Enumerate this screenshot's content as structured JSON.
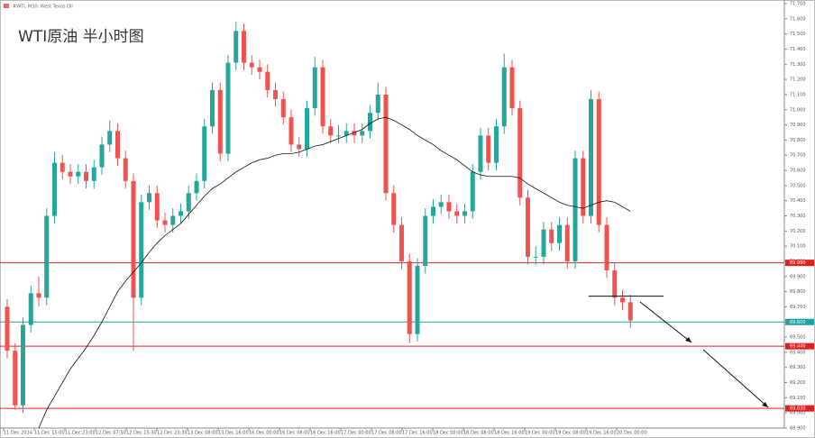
{
  "header": "#WTI, M30: West Texas Oil",
  "chart_data": {
    "type": "candlestick",
    "title": "WTI原油 半小时图",
    "ylim": [
      68.9,
      71.7
    ],
    "yticks": [
      {
        "value": 68.9,
        "label": "68.900"
      },
      {
        "value": 69.0,
        "label": "69.000"
      },
      {
        "value": 69.1,
        "label": "69.100"
      },
      {
        "value": 69.2,
        "label": "69.200"
      },
      {
        "value": 69.3,
        "label": "69.300"
      },
      {
        "value": 69.4,
        "label": "69.400"
      },
      {
        "value": 69.5,
        "label": "69.500"
      },
      {
        "value": 69.6,
        "label": "69.600"
      },
      {
        "value": 69.7,
        "label": "69.700"
      },
      {
        "value": 69.8,
        "label": "69.800"
      },
      {
        "value": 69.9,
        "label": "69.900"
      },
      {
        "value": 70.0,
        "label": "70.000"
      },
      {
        "value": 70.1,
        "label": "70.100"
      },
      {
        "value": 70.2,
        "label": "70.200"
      },
      {
        "value": 70.3,
        "label": "70.300"
      },
      {
        "value": 70.4,
        "label": "70.400"
      },
      {
        "value": 70.5,
        "label": "70.500"
      },
      {
        "value": 70.6,
        "label": "70.600"
      },
      {
        "value": 70.7,
        "label": "70.700"
      },
      {
        "value": 70.8,
        "label": "70.800"
      },
      {
        "value": 70.9,
        "label": "70.900"
      },
      {
        "value": 71.0,
        "label": "71.000"
      },
      {
        "value": 71.1,
        "label": "71.100"
      },
      {
        "value": 71.2,
        "label": "71.200"
      },
      {
        "value": 71.3,
        "label": "71.300"
      },
      {
        "value": 71.4,
        "label": "71.400"
      },
      {
        "value": 71.5,
        "label": "71.500"
      },
      {
        "value": 71.6,
        "label": "71.600"
      },
      {
        "value": 71.7,
        "label": "71.700"
      }
    ],
    "x_labels": [
      "11 Dec 2024",
      "11 Dec 15:00",
      "11 Dec 23:00",
      "12 Dec 07:30",
      "12 Dec 15:30",
      "12 Dec 23:30",
      "13 Dec 08:00",
      "13 Dec 16:00",
      "16 Dec 00:00",
      "16 Dec 08:00",
      "16 Dec 16:00",
      "17 Dec 00:00",
      "17 Dec 08:00",
      "17 Dec 16:00",
      "18 Dec 00:00",
      "18 Dec 08:00",
      "18 Dec 16:00",
      "19 Dec 00:00",
      "19 Dec 08:00",
      "19 Dec 16:00",
      "20 Dec 00:00"
    ],
    "up_color": "#26a69a",
    "down_color": "#ef5350",
    "ma_color": "#111111",
    "ohlc": [
      [
        69.7,
        69.75,
        69.36,
        69.41
      ],
      [
        69.41,
        69.46,
        69.02,
        69.05
      ],
      [
        69.05,
        69.63,
        69.0,
        69.58
      ],
      [
        69.58,
        69.84,
        69.53,
        69.79
      ],
      [
        69.79,
        69.9,
        69.7,
        69.76
      ],
      [
        69.76,
        70.35,
        69.71,
        70.3
      ],
      [
        70.3,
        70.72,
        70.25,
        70.65
      ],
      [
        70.65,
        70.7,
        70.54,
        70.59
      ],
      [
        70.59,
        70.64,
        70.51,
        70.56
      ],
      [
        70.56,
        70.64,
        70.51,
        70.59
      ],
      [
        70.59,
        70.64,
        70.48,
        70.53
      ],
      [
        70.53,
        70.67,
        70.48,
        70.62
      ],
      [
        70.62,
        70.82,
        70.57,
        70.77
      ],
      [
        70.77,
        70.93,
        70.72,
        70.86
      ],
      [
        70.86,
        70.91,
        70.63,
        70.68
      ],
      [
        70.68,
        70.73,
        70.48,
        70.53
      ],
      [
        70.53,
        70.58,
        69.41,
        69.76
      ],
      [
        69.76,
        70.44,
        69.71,
        70.39
      ],
      [
        70.39,
        70.5,
        70.34,
        70.45
      ],
      [
        70.45,
        70.5,
        70.22,
        70.27
      ],
      [
        70.27,
        70.32,
        70.19,
        70.24
      ],
      [
        70.24,
        70.35,
        70.19,
        70.3
      ],
      [
        70.3,
        70.38,
        70.25,
        70.33
      ],
      [
        70.33,
        70.5,
        70.28,
        70.45
      ],
      [
        70.45,
        70.58,
        70.4,
        70.53
      ],
      [
        70.53,
        70.94,
        70.48,
        70.89
      ],
      [
        70.89,
        71.18,
        70.84,
        71.13
      ],
      [
        71.13,
        71.18,
        70.66,
        70.71
      ],
      [
        70.71,
        71.36,
        70.66,
        71.31
      ],
      [
        71.31,
        71.58,
        71.26,
        71.52
      ],
      [
        71.52,
        71.57,
        71.26,
        71.31
      ],
      [
        71.31,
        71.36,
        71.23,
        71.28
      ],
      [
        71.28,
        71.33,
        71.2,
        71.25
      ],
      [
        71.25,
        71.3,
        71.08,
        71.13
      ],
      [
        71.13,
        71.18,
        71.02,
        71.07
      ],
      [
        71.07,
        71.12,
        70.9,
        70.95
      ],
      [
        70.95,
        71.0,
        70.72,
        70.77
      ],
      [
        70.77,
        70.82,
        70.69,
        70.74
      ],
      [
        70.74,
        71.06,
        70.69,
        71.01
      ],
      [
        71.01,
        71.35,
        70.96,
        71.28
      ],
      [
        71.28,
        71.33,
        70.84,
        70.89
      ],
      [
        70.89,
        70.94,
        70.78,
        70.83
      ],
      [
        70.83,
        70.9,
        70.78,
        70.83
      ],
      [
        70.83,
        70.91,
        70.78,
        70.86
      ],
      [
        70.86,
        70.91,
        70.78,
        70.83
      ],
      [
        70.83,
        70.91,
        70.78,
        70.86
      ],
      [
        70.86,
        71.03,
        70.81,
        70.98
      ],
      [
        70.98,
        71.18,
        70.93,
        71.1
      ],
      [
        71.1,
        71.15,
        70.4,
        70.45
      ],
      [
        70.45,
        70.5,
        70.19,
        70.24
      ],
      [
        70.24,
        70.29,
        69.95,
        70.0
      ],
      [
        70.0,
        70.05,
        69.46,
        69.52
      ],
      [
        69.52,
        70.02,
        69.47,
        69.97
      ],
      [
        69.97,
        70.35,
        69.92,
        70.3
      ],
      [
        70.3,
        70.41,
        70.25,
        70.36
      ],
      [
        70.36,
        70.44,
        70.31,
        70.39
      ],
      [
        70.39,
        70.44,
        70.28,
        70.33
      ],
      [
        70.33,
        70.38,
        70.25,
        70.3
      ],
      [
        70.3,
        70.38,
        70.25,
        70.33
      ],
      [
        70.33,
        70.64,
        70.28,
        70.59
      ],
      [
        70.59,
        70.88,
        70.54,
        70.83
      ],
      [
        70.83,
        70.88,
        70.6,
        70.65
      ],
      [
        70.65,
        70.94,
        70.6,
        70.89
      ],
      [
        70.89,
        71.37,
        70.84,
        71.28
      ],
      [
        71.28,
        71.33,
        70.96,
        71.01
      ],
      [
        71.01,
        71.06,
        70.37,
        70.42
      ],
      [
        70.42,
        70.47,
        69.98,
        70.03
      ],
      [
        70.03,
        70.1,
        69.98,
        70.03
      ],
      [
        70.03,
        70.26,
        69.98,
        70.21
      ],
      [
        70.21,
        70.26,
        70.07,
        70.12
      ],
      [
        70.12,
        70.29,
        70.07,
        70.24
      ],
      [
        70.24,
        70.29,
        69.95,
        70.0
      ],
      [
        70.0,
        70.73,
        69.95,
        70.68
      ],
      [
        70.68,
        70.73,
        70.25,
        70.3
      ],
      [
        70.3,
        71.13,
        70.25,
        71.07
      ],
      [
        71.07,
        71.12,
        70.19,
        70.24
      ],
      [
        70.24,
        70.29,
        69.89,
        69.94
      ],
      [
        69.94,
        69.99,
        69.71,
        69.76
      ],
      [
        69.76,
        69.81,
        69.68,
        69.73
      ],
      [
        69.73,
        69.78,
        69.56,
        69.61
      ]
    ],
    "ma": [
      null,
      null,
      null,
      null,
      68.9,
      69.02,
      69.11,
      69.2,
      69.29,
      69.36,
      69.43,
      69.51,
      69.6,
      69.7,
      69.8,
      69.87,
      69.93,
      69.99,
      70.06,
      70.12,
      70.17,
      70.21,
      70.25,
      70.31,
      70.37,
      70.43,
      70.48,
      70.51,
      70.55,
      70.59,
      70.62,
      70.65,
      70.67,
      70.68,
      70.7,
      70.71,
      70.71,
      70.72,
      70.74,
      70.76,
      70.77,
      70.79,
      70.81,
      70.83,
      70.85,
      70.87,
      70.91,
      70.94,
      70.95,
      70.93,
      70.9,
      70.87,
      70.83,
      70.8,
      70.77,
      70.73,
      70.7,
      70.67,
      70.63,
      70.59,
      70.57,
      70.56,
      70.56,
      70.56,
      70.56,
      70.55,
      70.51,
      70.48,
      70.45,
      70.42,
      70.39,
      70.37,
      70.36,
      70.35,
      70.37,
      70.39,
      70.4,
      70.39,
      70.36,
      70.33
    ],
    "levels": [
      {
        "value": 69.99,
        "label": "69.990",
        "color": "#e02020"
      },
      {
        "value": 69.44,
        "label": "69.440",
        "color": "#e02020"
      },
      {
        "value": 69.03,
        "label": "69.030",
        "color": "#e02020"
      },
      {
        "value": 69.6,
        "label": "69.600",
        "color": "#20a0a0"
      }
    ],
    "mark_line": {
      "value": 69.77,
      "color": "#111111"
    }
  }
}
